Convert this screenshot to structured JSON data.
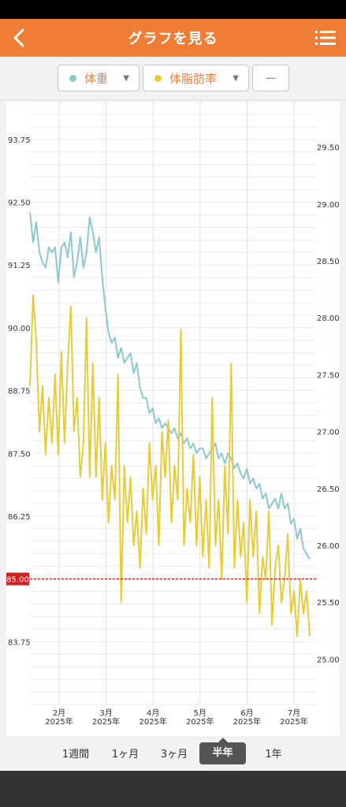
{
  "header": {
    "title": "グラフを見る",
    "back_icon": "chevron-left-icon",
    "menu_icon": "list-icon"
  },
  "selectors": [
    {
      "label": "体重",
      "dot_color": "#8cc8cf"
    },
    {
      "label": "体脂肪率",
      "dot_color": "#e6cc3d"
    },
    {
      "label": "ー"
    }
  ],
  "periods": {
    "week": "1週間",
    "month": "1ヶ月",
    "three_months": "3ヶ月",
    "half_year": "半年",
    "year": "1年",
    "active": "半年"
  },
  "chart_data": {
    "type": "line",
    "left_axis": {
      "ticks": [
        "93.75",
        "92.50",
        "91.25",
        "90.00",
        "88.75",
        "87.50",
        "86.25",
        "85.00",
        "83.75"
      ],
      "ylim": [
        82.5,
        94.5
      ]
    },
    "right_axis": {
      "ticks": [
        "29.50",
        "29.00",
        "28.50",
        "28.00",
        "27.50",
        "27.00",
        "26.50",
        "26.00",
        "25.50",
        "25.00"
      ],
      "ylim": [
        24.6,
        29.9
      ]
    },
    "x_labels": [
      {
        "month": "2月",
        "year": "2025年"
      },
      {
        "month": "3月",
        "year": "2025年"
      },
      {
        "month": "4月",
        "year": "2025年"
      },
      {
        "month": "5月",
        "year": "2025年"
      },
      {
        "month": "6月",
        "year": "2025年"
      },
      {
        "month": "7月",
        "year": "2025年"
      }
    ],
    "target_line": {
      "value": "85.00",
      "color": "#d32020"
    },
    "series": [
      {
        "color": "#8cc8cf",
        "axis": "left",
        "values": [
          92.3,
          91.7,
          92.1,
          91.5,
          91.3,
          91.2,
          91.6,
          91.5,
          91.6,
          90.9,
          91.6,
          91.7,
          91.4,
          91.9,
          91.0,
          91.3,
          91.8,
          91.2,
          91.5,
          92.2,
          91.9,
          91.5,
          91.8,
          91.0,
          90.4,
          89.9,
          89.7,
          89.8,
          89.4,
          89.6,
          89.3,
          89.4,
          89.5,
          89.1,
          89.3,
          88.8,
          88.6,
          88.6,
          88.3,
          88.4,
          88.1,
          88.2,
          88.0,
          88.1,
          88.0,
          87.9,
          88.0,
          87.8,
          87.9,
          87.7,
          87.8,
          87.6,
          87.7,
          87.5,
          87.6,
          87.6,
          87.4,
          87.5,
          87.6,
          87.7,
          87.4,
          87.5,
          87.3,
          87.5,
          87.4,
          87.2,
          87.3,
          87.1,
          87.0,
          87.2,
          86.9,
          87.0,
          86.8,
          86.9,
          86.6,
          86.7,
          86.4,
          86.5,
          86.6,
          86.4,
          86.7,
          86.4,
          86.5,
          86.1,
          86.2,
          85.8,
          86.0,
          85.6,
          85.5,
          85.4
        ]
      },
      {
        "color": "#e6cc3d",
        "axis": "right",
        "values": [
          27.4,
          28.2,
          27.8,
          27.0,
          27.4,
          26.8,
          27.3,
          26.9,
          27.5,
          26.8,
          27.7,
          26.9,
          27.6,
          28.1,
          27.0,
          27.3,
          26.6,
          26.9,
          28.0,
          26.6,
          27.6,
          26.6,
          27.3,
          26.4,
          26.9,
          26.2,
          26.7,
          26.4,
          27.5,
          25.5,
          26.7,
          26.2,
          26.6,
          26.0,
          26.3,
          25.8,
          26.5,
          26.1,
          26.9,
          26.4,
          26.7,
          26.0,
          27.0,
          26.6,
          27.1,
          26.2,
          26.7,
          26.4,
          27.9,
          26.0,
          26.5,
          26.2,
          26.8,
          26.0,
          26.6,
          25.9,
          26.4,
          25.8,
          27.3,
          26.0,
          26.4,
          25.7,
          26.7,
          26.1,
          27.6,
          25.8,
          26.4,
          25.9,
          26.2,
          25.5,
          26.4,
          25.9,
          26.3,
          25.4,
          25.9,
          25.7,
          26.3,
          25.3,
          25.8,
          26.0,
          25.5,
          25.7,
          26.1,
          25.4,
          25.6,
          25.2,
          25.7,
          25.4,
          25.6,
          25.2
        ]
      }
    ]
  }
}
